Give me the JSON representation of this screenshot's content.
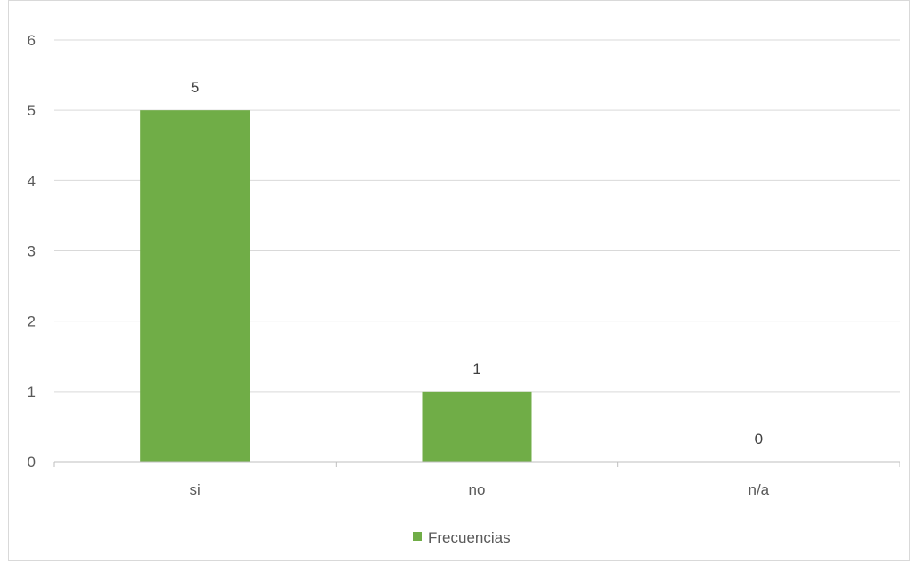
{
  "chart_data": {
    "type": "bar",
    "categories": [
      "si",
      "no",
      "n/a"
    ],
    "series": [
      {
        "name": "Frecuencias",
        "values": [
          5,
          1,
          0
        ],
        "color": "#70ad47"
      }
    ],
    "title": "",
    "xlabel": "",
    "ylabel": "",
    "ylim": [
      0,
      6
    ],
    "yticks": [
      "0",
      "1",
      "2",
      "3",
      "4",
      "5",
      "6"
    ],
    "data_labels": [
      "5",
      "1",
      "0"
    ],
    "grid": true,
    "legend_position": "bottom"
  },
  "colors": {
    "bar": "#70ad47",
    "grid": "#d9d9d9",
    "axis": "#bfbfbf"
  }
}
